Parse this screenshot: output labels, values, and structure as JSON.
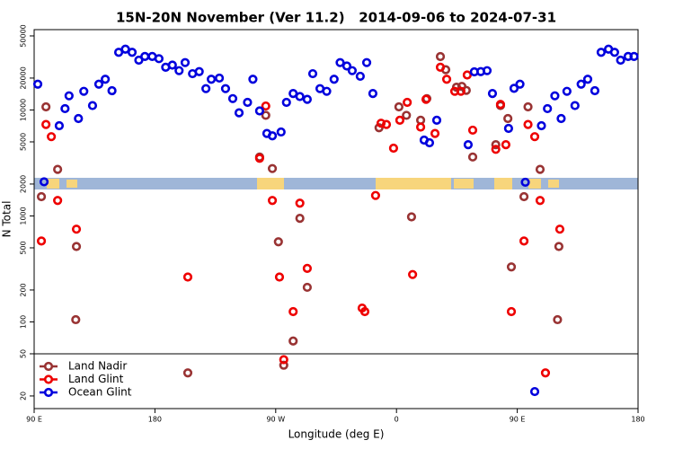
{
  "chart_data": {
    "type": "scatter",
    "title": "15N-20N November (Ver 11.2)   2014-09-06 to 2024-07-31",
    "x_label": "Longitude (deg E)",
    "y_label": "N Total",
    "log_y": true,
    "xlim": [
      90,
      540
    ],
    "xticks": [
      {
        "value": 90,
        "label": "90 E"
      },
      180,
      {
        "value": 270,
        "label": "90 W"
      },
      {
        "value": 360,
        "label": "0"
      },
      {
        "value": 450,
        "label": "90 E"
      },
      {
        "value": 540,
        "label": "180"
      }
    ],
    "ylim": [
      15.2,
      57300
    ],
    "yticks": [
      20,
      50,
      100,
      200,
      500,
      1000,
      2000,
      5000,
      10000,
      20000,
      50000
    ],
    "separator_line": 50,
    "legend": "bottom-left",
    "series": [
      {
        "name": "Land Nadir",
        "color": "#993333",
        "x": [
          95.4,
          98.8,
          107.5,
          121.5,
          121,
          204.5,
          258,
          262.6,
          267.5,
          272,
          276,
          283,
          288,
          293.5,
          347,
          361.8,
          367.4,
          371.2,
          378,
          382.6,
          392.7,
          396.7,
          404.7,
          408.7,
          412,
          416.8,
          434,
          437.5,
          443,
          445.6,
          455,
          458,
          467,
          481,
          480
        ],
        "values": [
          1520,
          10700,
          2750,
          515,
          105,
          33,
          3600,
          8900,
          2800,
          570,
          39,
          66,
          950,
          212,
          6800,
          10700,
          8900,
          980,
          8000,
          12800,
          31900,
          24000,
          16400,
          16700,
          15300,
          3600,
          4700,
          11000,
          8300,
          330,
          1520,
          10700,
          2750,
          515,
          105
        ]
      },
      {
        "name": "Land Glint",
        "color": "#ee0000",
        "x": [
          95.4,
          98.8,
          102.8,
          107.5,
          121.5,
          204.5,
          258,
          262.6,
          267.5,
          272.8,
          276,
          283,
          288,
          293.5,
          334.4,
          336.4,
          344.4,
          348.5,
          352.5,
          357.8,
          362.5,
          368,
          372,
          378,
          382,
          388.7,
          392.7,
          397.4,
          403.4,
          408,
          412.7,
          416.8,
          434,
          437.5,
          441.5,
          445.6,
          455,
          458,
          463,
          467,
          481.7,
          471
        ],
        "values": [
          580,
          7300,
          5600,
          1400,
          750,
          265,
          3500,
          10900,
          1400,
          265,
          44,
          125,
          1320,
          320,
          135,
          125,
          1560,
          7500,
          7300,
          4360,
          8000,
          11800,
          280,
          6900,
          12600,
          6000,
          25300,
          19500,
          15000,
          15000,
          21400,
          6450,
          4250,
          11300,
          4700,
          125,
          580,
          7300,
          5600,
          1400,
          750,
          33
        ]
      },
      {
        "name": "Ocean Glint",
        "color": "#0000dd",
        "x": [
          92.7,
          97.4,
          108.7,
          113,
          116,
          123,
          127,
          133.5,
          138.2,
          143,
          148,
          153,
          158,
          163,
          168,
          172.5,
          178,
          183,
          188,
          193,
          198,
          202.5,
          208,
          213,
          218,
          222,
          228,
          232.6,
          238,
          242.7,
          249,
          253,
          258,
          263.4,
          267.5,
          274,
          278,
          283,
          288,
          293.5,
          297.6,
          303,
          308,
          313.5,
          318,
          323,
          327,
          333,
          337.8,
          342.4,
          380.6,
          384.6,
          390,
          413.4,
          418,
          422.8,
          427.5,
          431.5,
          443.5,
          447.6,
          452,
          456,
          468,
          472.5,
          478,
          482.7,
          487,
          493,
          497.6,
          502.5,
          507.8,
          512.5,
          518,
          522.5,
          527,
          532.6,
          537,
          463
        ],
        "values": [
          17500,
          2100,
          7100,
          10300,
          13600,
          8300,
          15000,
          11000,
          17500,
          19500,
          15200,
          35000,
          37500,
          35000,
          29500,
          32000,
          32000,
          30500,
          25300,
          26500,
          23500,
          28000,
          22000,
          23000,
          15900,
          19500,
          20000,
          15900,
          12800,
          9400,
          11800,
          19500,
          9800,
          6000,
          5700,
          6200,
          11800,
          14300,
          13400,
          12600,
          22000,
          15900,
          15000,
          19500,
          28000,
          26000,
          23500,
          20800,
          28000,
          14300,
          5200,
          4900,
          8000,
          4700,
          22900,
          23000,
          23500,
          14300,
          6700,
          16000,
          17500,
          2080,
          7100,
          10300,
          13600,
          8300,
          15000,
          11000,
          17500,
          19500,
          15200,
          35000,
          37500,
          35000,
          29500,
          32000,
          32000,
          22
        ]
      }
    ]
  }
}
